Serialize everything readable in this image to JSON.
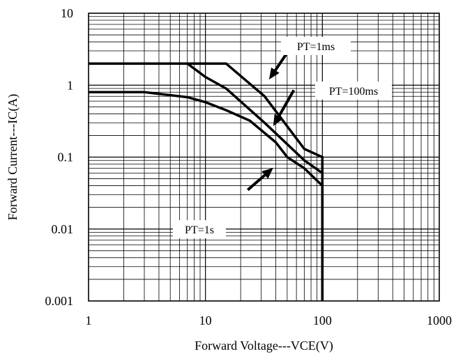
{
  "chart_data": {
    "type": "line",
    "title": "",
    "xlabel": "Forward Voltage---VCE(V)",
    "ylabel": "Forward Current---IC(A)",
    "xscale": "log",
    "yscale": "log",
    "xlim": [
      1,
      1000
    ],
    "ylim": [
      0.001,
      10
    ],
    "grid": true,
    "x_ticks": [
      1,
      10,
      100,
      1000
    ],
    "x_tick_labels": [
      "1",
      "10",
      "100",
      "1000"
    ],
    "y_ticks": [
      0.001,
      0.01,
      0.1,
      1,
      10
    ],
    "y_tick_labels": [
      "0.001",
      "0.01",
      "0.1",
      "1",
      "10"
    ],
    "series": [
      {
        "name": "PT=1ms",
        "x": [
          1,
          15,
          32,
          70,
          100,
          100,
          100
        ],
        "y": [
          2,
          2,
          0.7,
          0.13,
          0.1,
          0.01,
          0.001
        ]
      },
      {
        "name": "PT=100ms",
        "x": [
          1,
          7,
          10,
          15,
          32,
          70,
          100,
          100
        ],
        "y": [
          2,
          2,
          1.3,
          0.9,
          0.3,
          0.09,
          0.06,
          0.001
        ]
      },
      {
        "name": "PT=1s",
        "x": [
          1,
          3,
          7,
          10,
          15,
          24,
          40,
          50,
          70,
          100,
          100
        ],
        "y": [
          0.8,
          0.8,
          0.68,
          0.58,
          0.45,
          0.32,
          0.16,
          0.1,
          0.07,
          0.04,
          0.001
        ]
      }
    ],
    "annotations": [
      {
        "label": "PT=1ms",
        "arrow_from": [
          52,
          3.1
        ],
        "arrow_to": [
          35,
          1.2
        ]
      },
      {
        "label": "PT=100ms",
        "arrow_from": [
          57,
          0.85
        ],
        "arrow_to": [
          38,
          0.27
        ]
      },
      {
        "label": "PT=1s",
        "arrow_from": [
          23,
          0.035
        ],
        "arrow_to": [
          38,
          0.071
        ]
      }
    ]
  }
}
